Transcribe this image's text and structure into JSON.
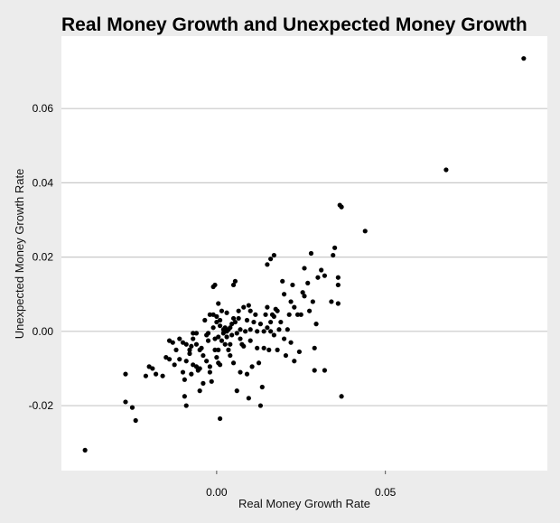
{
  "chart_data": {
    "type": "scatter",
    "title": "Real Money Growth and Unexpected Money Growth",
    "xlabel": "Real Money Growth Rate",
    "ylabel": "Unexpected Money Growth Rate",
    "xlim": [
      -0.046,
      0.098
    ],
    "ylim": [
      -0.0375,
      0.0795
    ],
    "x_ticks": [
      {
        "value": 0.0,
        "label": "0.00"
      },
      {
        "value": 0.05,
        "label": "0.05"
      }
    ],
    "y_ticks": [
      {
        "value": -0.02,
        "label": "-0.02"
      },
      {
        "value": 0.0,
        "label": "0.00"
      },
      {
        "value": 0.02,
        "label": "0.02"
      },
      {
        "value": 0.04,
        "label": "0.04"
      },
      {
        "value": 0.06,
        "label": "0.06"
      }
    ],
    "grid": "horizontal",
    "colors": {
      "background": "#ffffff",
      "panel": "#ececec",
      "point": "#000000",
      "grid": "#c8c8c8"
    },
    "points": [
      [
        -0.039,
        -0.032
      ],
      [
        -0.027,
        -0.0115
      ],
      [
        -0.027,
        -0.019
      ],
      [
        -0.025,
        -0.0205
      ],
      [
        -0.024,
        -0.024
      ],
      [
        -0.021,
        -0.012
      ],
      [
        -0.02,
        -0.0095
      ],
      [
        -0.019,
        -0.01
      ],
      [
        -0.018,
        -0.0115
      ],
      [
        -0.016,
        -0.012
      ],
      [
        -0.015,
        -0.007
      ],
      [
        -0.014,
        -0.0075
      ],
      [
        -0.014,
        -0.0025
      ],
      [
        -0.013,
        -0.003
      ],
      [
        -0.012,
        -0.005
      ],
      [
        -0.0125,
        -0.009
      ],
      [
        -0.011,
        -0.0075
      ],
      [
        -0.011,
        -0.002
      ],
      [
        -0.01,
        -0.003
      ],
      [
        -0.01,
        -0.011
      ],
      [
        -0.0095,
        -0.013
      ],
      [
        -0.0095,
        -0.0175
      ],
      [
        -0.009,
        -0.02
      ],
      [
        -0.009,
        -0.008
      ],
      [
        -0.009,
        -0.0035
      ],
      [
        -0.008,
        -0.005
      ],
      [
        -0.008,
        -0.006
      ],
      [
        -0.0075,
        -0.0115
      ],
      [
        -0.0075,
        -0.004
      ],
      [
        -0.007,
        -0.0005
      ],
      [
        -0.007,
        -0.002
      ],
      [
        -0.007,
        -0.009
      ],
      [
        -0.006,
        -0.0095
      ],
      [
        -0.006,
        -0.0035
      ],
      [
        -0.006,
        -0.0005
      ],
      [
        -0.0055,
        -0.0105
      ],
      [
        -0.005,
        -0.016
      ],
      [
        -0.005,
        -0.01
      ],
      [
        -0.005,
        -0.005
      ],
      [
        -0.0045,
        -0.0045
      ],
      [
        -0.004,
        -0.014
      ],
      [
        -0.004,
        -0.0065
      ],
      [
        -0.0035,
        0.003
      ],
      [
        -0.003,
        -0.001
      ],
      [
        -0.003,
        -0.008
      ],
      [
        -0.0025,
        -0.0005
      ],
      [
        -0.0025,
        -0.0025
      ],
      [
        -0.002,
        0.0045
      ],
      [
        -0.002,
        -0.0095
      ],
      [
        -0.002,
        -0.011
      ],
      [
        -0.0015,
        -0.0135
      ],
      [
        -0.001,
        0.001
      ],
      [
        -0.001,
        0.0045
      ],
      [
        -0.0005,
        -0.002
      ],
      [
        -0.0005,
        -0.005
      ],
      [
        0.0,
        0.004
      ],
      [
        0.0,
        0.0025
      ],
      [
        0.0,
        -0.007
      ],
      [
        0.0005,
        -0.005
      ],
      [
        0.0005,
        -0.0015
      ],
      [
        0.001,
        0.0015
      ],
      [
        0.001,
        0.003
      ],
      [
        -0.001,
        0.012
      ],
      [
        -0.0005,
        0.0125
      ],
      [
        0.0005,
        0.0075
      ],
      [
        0.0005,
        -0.0085
      ],
      [
        0.001,
        -0.009
      ],
      [
        0.001,
        -0.0235
      ],
      [
        0.0015,
        -0.0025
      ],
      [
        0.0015,
        0.0055
      ],
      [
        0.002,
        -0.0005
      ],
      [
        0.002,
        0.0005
      ],
      [
        0.0025,
        0.001
      ],
      [
        0.0025,
        -0.0035
      ],
      [
        0.003,
        0.005
      ],
      [
        0.003,
        -0.0015
      ],
      [
        0.003,
        0.0
      ],
      [
        0.0035,
        0.0005
      ],
      [
        0.0035,
        -0.005
      ],
      [
        0.004,
        0.001
      ],
      [
        0.004,
        -0.0035
      ],
      [
        0.004,
        -0.0065
      ],
      [
        0.0045,
        0.002
      ],
      [
        0.0045,
        -0.001
      ],
      [
        0.005,
        0.0125
      ],
      [
        0.005,
        0.0035
      ],
      [
        0.005,
        -0.0085
      ],
      [
        0.0055,
        0.0135
      ],
      [
        0.0055,
        0.0025
      ],
      [
        0.006,
        -0.0005
      ],
      [
        0.006,
        -0.016
      ],
      [
        0.0065,
        0.0055
      ],
      [
        0.0065,
        0.0035
      ],
      [
        0.007,
        0.0005
      ],
      [
        0.007,
        -0.002
      ],
      [
        0.007,
        -0.011
      ],
      [
        0.0075,
        -0.0035
      ],
      [
        0.008,
        0.0065
      ],
      [
        0.008,
        -0.004
      ],
      [
        0.0085,
        0.0
      ],
      [
        0.009,
        0.003
      ],
      [
        0.009,
        -0.0115
      ],
      [
        0.0095,
        0.007
      ],
      [
        0.0095,
        -0.018
      ],
      [
        0.01,
        0.0055
      ],
      [
        0.01,
        0.0005
      ],
      [
        0.01,
        -0.0025
      ],
      [
        0.0105,
        -0.0095
      ],
      [
        0.011,
        0.0025
      ],
      [
        0.0115,
        0.0045
      ],
      [
        0.012,
        -0.0045
      ],
      [
        0.012,
        0.0
      ],
      [
        0.0125,
        -0.0085
      ],
      [
        0.013,
        -0.02
      ],
      [
        0.013,
        0.002
      ],
      [
        0.0135,
        -0.015
      ],
      [
        0.014,
        -0.0045
      ],
      [
        0.014,
        0.0
      ],
      [
        0.0145,
        0.0045
      ],
      [
        0.015,
        0.0065
      ],
      [
        0.015,
        0.001
      ],
      [
        0.0155,
        -0.005
      ],
      [
        0.016,
        0.0025
      ],
      [
        0.016,
        0.0
      ],
      [
        0.0165,
        0.0045
      ],
      [
        0.017,
        0.004
      ],
      [
        0.017,
        -0.001
      ],
      [
        0.0175,
        0.006
      ],
      [
        0.018,
        0.0055
      ],
      [
        0.018,
        -0.005
      ],
      [
        0.0185,
        0.0005
      ],
      [
        0.019,
        0.0025
      ],
      [
        0.0195,
        0.0135
      ],
      [
        0.02,
        0.01
      ],
      [
        0.02,
        -0.002
      ],
      [
        0.0205,
        -0.0065
      ],
      [
        0.021,
        0.0005
      ],
      [
        0.0215,
        0.0045
      ],
      [
        0.022,
        0.008
      ],
      [
        0.022,
        -0.003
      ],
      [
        0.0225,
        0.0125
      ],
      [
        0.023,
        0.0065
      ],
      [
        0.023,
        -0.008
      ],
      [
        0.024,
        0.0045
      ],
      [
        0.0245,
        -0.0055
      ],
      [
        0.015,
        0.018
      ],
      [
        0.016,
        0.0195
      ],
      [
        0.017,
        0.0205
      ],
      [
        0.025,
        0.0045
      ],
      [
        0.0255,
        0.0105
      ],
      [
        0.026,
        0.017
      ],
      [
        0.026,
        0.0095
      ],
      [
        0.027,
        0.013
      ],
      [
        0.0275,
        0.0055
      ],
      [
        0.028,
        0.021
      ],
      [
        0.0285,
        0.008
      ],
      [
        0.029,
        -0.0105
      ],
      [
        0.029,
        -0.0045
      ],
      [
        0.0295,
        0.002
      ],
      [
        0.03,
        0.0145
      ],
      [
        0.031,
        0.0165
      ],
      [
        0.032,
        0.015
      ],
      [
        0.032,
        -0.0105
      ],
      [
        0.034,
        0.008
      ],
      [
        0.0345,
        0.0205
      ],
      [
        0.035,
        0.0225
      ],
      [
        0.036,
        0.0145
      ],
      [
        0.036,
        0.0125
      ],
      [
        0.036,
        0.0075
      ],
      [
        0.0365,
        0.034
      ],
      [
        0.037,
        0.0335
      ],
      [
        0.037,
        -0.0175
      ],
      [
        0.044,
        0.027
      ],
      [
        0.068,
        0.0435
      ],
      [
        0.091,
        0.0735
      ]
    ]
  }
}
